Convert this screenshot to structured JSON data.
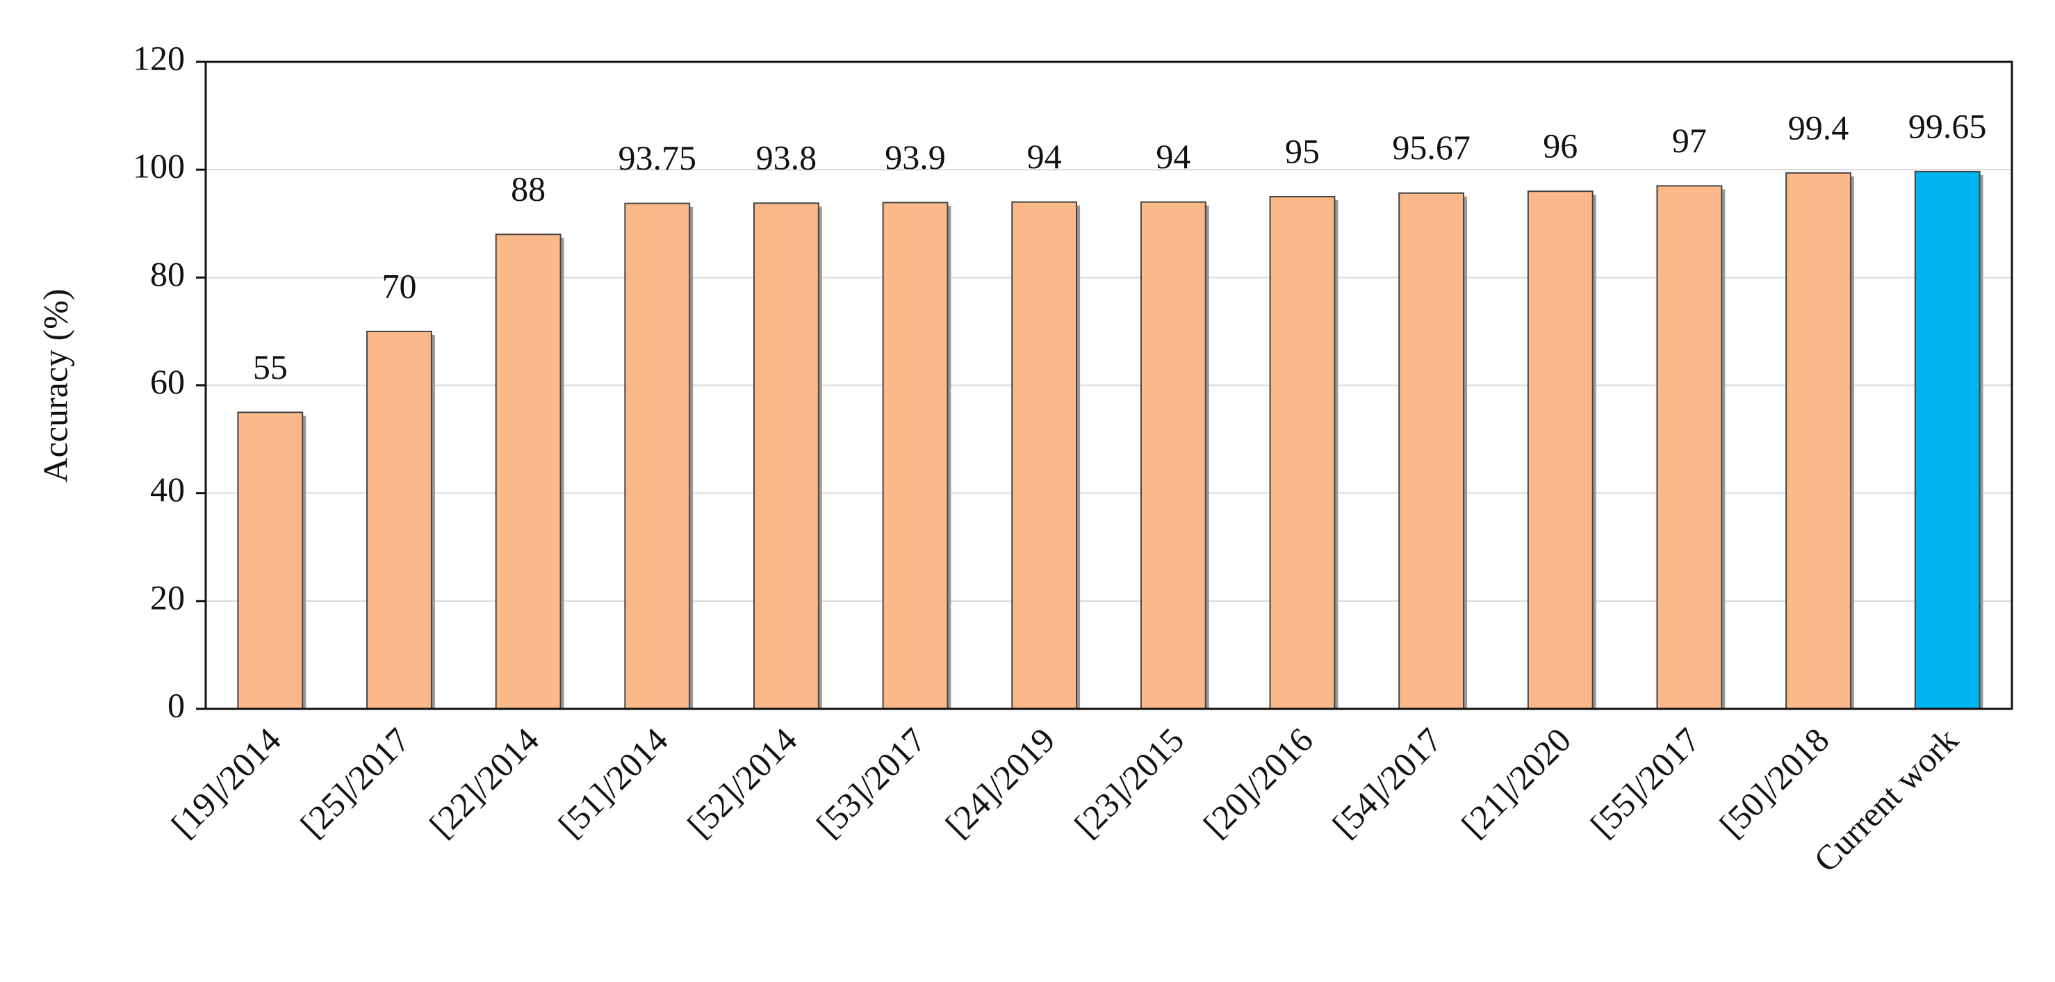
{
  "chart_data": {
    "type": "bar",
    "y_label": "Accuracy (%)",
    "categories": [
      "[19]/2014",
      "[25]/2017",
      "[22]/2014",
      "[51]/2014",
      "[52]/2014",
      "[53]/2017",
      "[24]/2019",
      "[23]/2015",
      "[20]/2016",
      "[54]/2017",
      "[21]/2020",
      "[55]/2017",
      "[50]/2018",
      "Current work"
    ],
    "values": [
      55,
      70,
      88,
      93.75,
      93.8,
      93.9,
      94,
      94,
      95,
      95.67,
      96,
      97,
      99.4,
      99.65
    ],
    "colors": [
      "#fbb98a",
      "#fbb98a",
      "#fbb98a",
      "#fbb98a",
      "#fbb98a",
      "#fbb98a",
      "#fbb98a",
      "#fbb98a",
      "#fbb98a",
      "#fbb98a",
      "#fbb98a",
      "#fbb98a",
      "#fbb98a",
      "#00b4f0"
    ],
    "ylim": [
      0,
      120
    ],
    "yticks": [
      0,
      20,
      40,
      60,
      80,
      100,
      120
    ],
    "grid": true
  }
}
